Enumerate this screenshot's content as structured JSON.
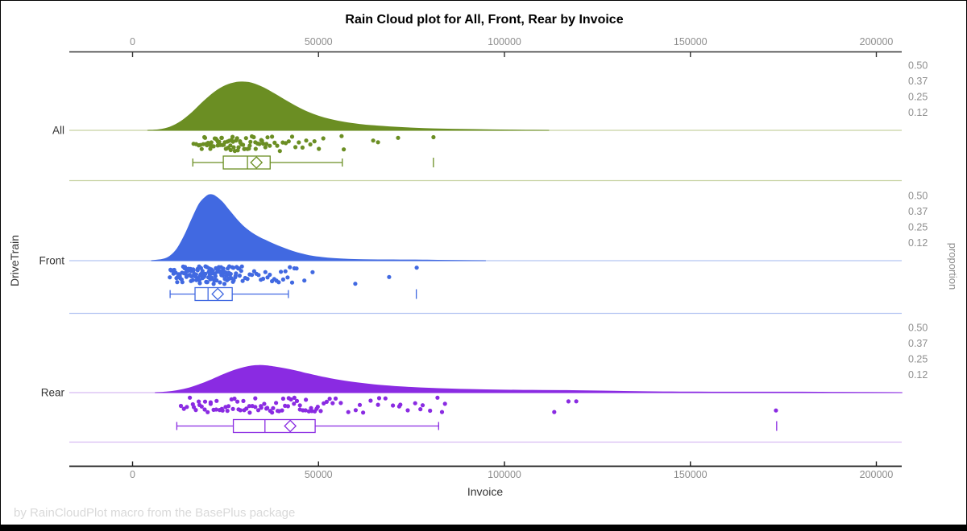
{
  "title": "Rain Cloud plot for All, Front, Rear by Invoice",
  "footnote": "by RainCloudPlot macro from the BasePlus package",
  "axes": {
    "x_label": "Invoice",
    "y_label": "DriveTrain",
    "right_label": "proportion",
    "x_tick_labels": [
      "0",
      "50000",
      "100000",
      "150000",
      "200000"
    ],
    "x_tick_values": [
      0,
      50000,
      100000,
      150000,
      200000
    ],
    "proportion_tick_labels": [
      "0.50",
      "0.37",
      "0.25",
      "0.12"
    ],
    "proportion_tick_values": [
      0.5,
      0.37,
      0.25,
      0.12
    ]
  },
  "chart_data": {
    "type": "raincloud",
    "x_axis_range": [
      -17000,
      207000
    ],
    "categories": [
      "All",
      "Front",
      "Rear"
    ],
    "groups": [
      {
        "name": "All",
        "color": "#6B8E23",
        "light_color": "#C7D2A2",
        "density_k_prop": [
          [
            4,
            0
          ],
          [
            7,
            0.005
          ],
          [
            10,
            0.025
          ],
          [
            13,
            0.07
          ],
          [
            16,
            0.14
          ],
          [
            19,
            0.225
          ],
          [
            22,
            0.3
          ],
          [
            25,
            0.352
          ],
          [
            28,
            0.378
          ],
          [
            30,
            0.38
          ],
          [
            32,
            0.372
          ],
          [
            35,
            0.338
          ],
          [
            38,
            0.29
          ],
          [
            41,
            0.238
          ],
          [
            44,
            0.188
          ],
          [
            47,
            0.145
          ],
          [
            50,
            0.112
          ],
          [
            53,
            0.087
          ],
          [
            57,
            0.063
          ],
          [
            61,
            0.047
          ],
          [
            65,
            0.036
          ],
          [
            69,
            0.028
          ],
          [
            73,
            0.021
          ],
          [
            77,
            0.016
          ],
          [
            81,
            0.012
          ],
          [
            86,
            0.009
          ],
          [
            92,
            0.006
          ],
          [
            99,
            0.003
          ],
          [
            106,
            0.001
          ],
          [
            112,
            0
          ]
        ],
        "box": {
          "whisker_low": 16.2,
          "q1": 24.4,
          "median": 30.9,
          "mean": 33.3,
          "q3": 37.0,
          "whisker_high": 56.4,
          "far_outliers": [
            80.9
          ]
        },
        "points_k": [
          16.4,
          17.1,
          17.8,
          18.2,
          18.6,
          19.0,
          19.3,
          19.7,
          20.0,
          20.3,
          20.6,
          20.9,
          21.2,
          21.5,
          21.8,
          22.1,
          22.4,
          22.7,
          23.0,
          23.3,
          23.6,
          23.9,
          24.2,
          24.5,
          24.8,
          25.1,
          25.4,
          25.7,
          26.0,
          26.3,
          26.6,
          26.9,
          27.2,
          27.5,
          27.8,
          28.1,
          28.5,
          28.9,
          29.3,
          29.7,
          30.1,
          30.5,
          30.9,
          31.3,
          31.7,
          32.1,
          32.6,
          33.1,
          33.6,
          34.1,
          34.6,
          35.1,
          35.7,
          36.3,
          36.9,
          37.5,
          38.2,
          38.9,
          39.6,
          40.4,
          41.2,
          42.0,
          42.9,
          43.8,
          44.7,
          45.7,
          46.7,
          47.8,
          48.9,
          50.1,
          51.3,
          19.5,
          21.0,
          22.9,
          24.0,
          25.5,
          27.0,
          28.3,
          30.0,
          31.5,
          33.0,
          26.4,
          23.4,
          29.0,
          34.8,
          36.0,
          56.2,
          56.8,
          64.7,
          66.0,
          71.4,
          80.9
        ]
      },
      {
        "name": "Front",
        "color": "#4169E1",
        "light_color": "#B5C5F2",
        "density_k_prop": [
          [
            5,
            0
          ],
          [
            8,
            0.01
          ],
          [
            10,
            0.035
          ],
          [
            12,
            0.095
          ],
          [
            14,
            0.2
          ],
          [
            16,
            0.33
          ],
          [
            18,
            0.45
          ],
          [
            20,
            0.51
          ],
          [
            21,
            0.52
          ],
          [
            22,
            0.512
          ],
          [
            24,
            0.465
          ],
          [
            26,
            0.395
          ],
          [
            28,
            0.325
          ],
          [
            30,
            0.265
          ],
          [
            32,
            0.22
          ],
          [
            34,
            0.185
          ],
          [
            36,
            0.157
          ],
          [
            38,
            0.13
          ],
          [
            40,
            0.106
          ],
          [
            42,
            0.084
          ],
          [
            44,
            0.065
          ],
          [
            46,
            0.05
          ],
          [
            48,
            0.037
          ],
          [
            51,
            0.025
          ],
          [
            54,
            0.017
          ],
          [
            58,
            0.011
          ],
          [
            62,
            0.008
          ],
          [
            66,
            0.0065
          ],
          [
            70,
            0.006
          ],
          [
            74,
            0.0058
          ],
          [
            78,
            0.005
          ],
          [
            82,
            0.0035
          ],
          [
            88,
            0.0018
          ],
          [
            95,
            0
          ]
        ],
        "box": {
          "whisker_low": 10.1,
          "q1": 16.8,
          "median": 20.3,
          "mean": 22.9,
          "q3": 26.8,
          "whisker_high": 41.9,
          "far_outliers": [
            76.3
          ]
        },
        "points_k": [
          10.0,
          10.4,
          10.8,
          11.2,
          11.6,
          12.0,
          12.4,
          12.8,
          13.2,
          13.6,
          14.0,
          14.4,
          14.8,
          15.2,
          15.6,
          16.0,
          16.4,
          16.8,
          17.2,
          17.6,
          18.0,
          18.4,
          18.8,
          19.2,
          19.6,
          20.0,
          20.4,
          20.8,
          21.2,
          21.6,
          22.0,
          22.4,
          22.8,
          23.2,
          23.6,
          24.0,
          24.4,
          24.8,
          25.2,
          25.6,
          26.0,
          26.4,
          26.8,
          27.2,
          27.6,
          28.0,
          28.4,
          28.8,
          29.2,
          29.6,
          10.2,
          11.0,
          11.8,
          12.6,
          13.4,
          14.2,
          15.0,
          15.8,
          16.6,
          17.4,
          18.2,
          19.0,
          19.8,
          20.6,
          21.4,
          22.2,
          23.0,
          23.8,
          24.6,
          25.4,
          26.2,
          27.0,
          27.8,
          28.6,
          29.4,
          12.1,
          12.7,
          13.3,
          13.9,
          14.5,
          15.1,
          15.7,
          16.3,
          16.9,
          17.5,
          18.1,
          18.7,
          19.3,
          19.9,
          20.5,
          21.1,
          21.7,
          22.3,
          22.9,
          23.5,
          24.1,
          24.7,
          25.3,
          25.9,
          26.5,
          27.1,
          27.7,
          14.1,
          14.5,
          14.9,
          15.3,
          15.8,
          16.2,
          16.6,
          17.1,
          17.5,
          17.9,
          18.3,
          18.8,
          19.2,
          19.6,
          20.1,
          20.5,
          20.9,
          21.3,
          21.8,
          22.2,
          22.6,
          23.1,
          23.5,
          23.9,
          24.3,
          24.8,
          25.9,
          30.3,
          30.9,
          31.5,
          32.1,
          32.7,
          33.3,
          33.9,
          34.5,
          35.1,
          35.7,
          36.3,
          36.9,
          37.5,
          38.1,
          38.7,
          39.3,
          39.9,
          40.5,
          41.1,
          41.7,
          42.3,
          42.9,
          43.5,
          44.1,
          46.2,
          48.4,
          59.9,
          69.0,
          76.4
        ]
      },
      {
        "name": "Rear",
        "color": "#8A2BE2",
        "light_color": "#D7BBF2",
        "density_k_prop": [
          [
            6,
            0
          ],
          [
            9,
            0.005
          ],
          [
            12,
            0.016
          ],
          [
            15,
            0.035
          ],
          [
            18,
            0.064
          ],
          [
            21,
            0.098
          ],
          [
            24,
            0.137
          ],
          [
            27,
            0.172
          ],
          [
            30,
            0.198
          ],
          [
            32,
            0.21
          ],
          [
            34,
            0.214
          ],
          [
            36,
            0.211
          ],
          [
            38,
            0.203
          ],
          [
            41,
            0.188
          ],
          [
            44,
            0.17
          ],
          [
            47,
            0.149
          ],
          [
            50,
            0.129
          ],
          [
            53,
            0.111
          ],
          [
            57,
            0.091
          ],
          [
            61,
            0.075
          ],
          [
            65,
            0.062
          ],
          [
            69,
            0.052
          ],
          [
            73,
            0.044
          ],
          [
            77,
            0.038
          ],
          [
            81,
            0.033
          ],
          [
            85,
            0.029
          ],
          [
            90,
            0.025
          ],
          [
            95,
            0.022
          ],
          [
            100,
            0.02
          ],
          [
            105,
            0.0185
          ],
          [
            110,
            0.0178
          ],
          [
            115,
            0.0168
          ],
          [
            120,
            0.0152
          ],
          [
            126,
            0.0128
          ],
          [
            132,
            0.0098
          ],
          [
            138,
            0.0072
          ],
          [
            145,
            0.0054
          ],
          [
            152,
            0.0044
          ],
          [
            160,
            0.004
          ],
          [
            166,
            0.0042
          ],
          [
            173,
            0.0043
          ],
          [
            180,
            0.0036
          ],
          [
            188,
            0.0026
          ],
          [
            196,
            0.0016
          ],
          [
            203,
            0.0008
          ],
          [
            207,
            0
          ]
        ],
        "box": {
          "whisker_low": 11.9,
          "q1": 27.1,
          "median": 35.6,
          "mean": 42.4,
          "q3": 49.1,
          "whisker_high": 82.3,
          "far_outliers": [
            173.2
          ]
        },
        "points_k": [
          13.0,
          13.8,
          14.6,
          15.4,
          16.2,
          17.0,
          17.8,
          18.6,
          19.4,
          20.2,
          21.0,
          21.8,
          22.6,
          23.4,
          24.2,
          25.0,
          25.8,
          26.6,
          27.4,
          28.2,
          29.0,
          29.8,
          30.6,
          31.4,
          32.2,
          33.0,
          33.8,
          34.6,
          35.4,
          36.2,
          37.0,
          37.8,
          38.6,
          39.4,
          40.2,
          41.0,
          41.8,
          42.6,
          43.4,
          44.2,
          45.0,
          45.8,
          46.6,
          47.4,
          48.2,
          49.0,
          49.8,
          50.6,
          51.4,
          52.2,
          53.0,
          53.8,
          54.6,
          16.5,
          18.0,
          19.5,
          21.0,
          22.5,
          24.0,
          25.5,
          27.0,
          28.5,
          30.0,
          31.5,
          33.0,
          34.5,
          36.0,
          37.5,
          39.0,
          40.5,
          42.0,
          43.5,
          45.0,
          46.5,
          48.0,
          49.5,
          56.0,
          58.0,
          60.0,
          62.0,
          64.0,
          66.0,
          68.0,
          70.0,
          72.0,
          74.0,
          76.0,
          78.0,
          80.0,
          82.0,
          84.0,
          61.1,
          66.3,
          71.7,
          77.4,
          83.2,
          113.4,
          117.2,
          119.3,
          173.0
        ]
      }
    ]
  }
}
